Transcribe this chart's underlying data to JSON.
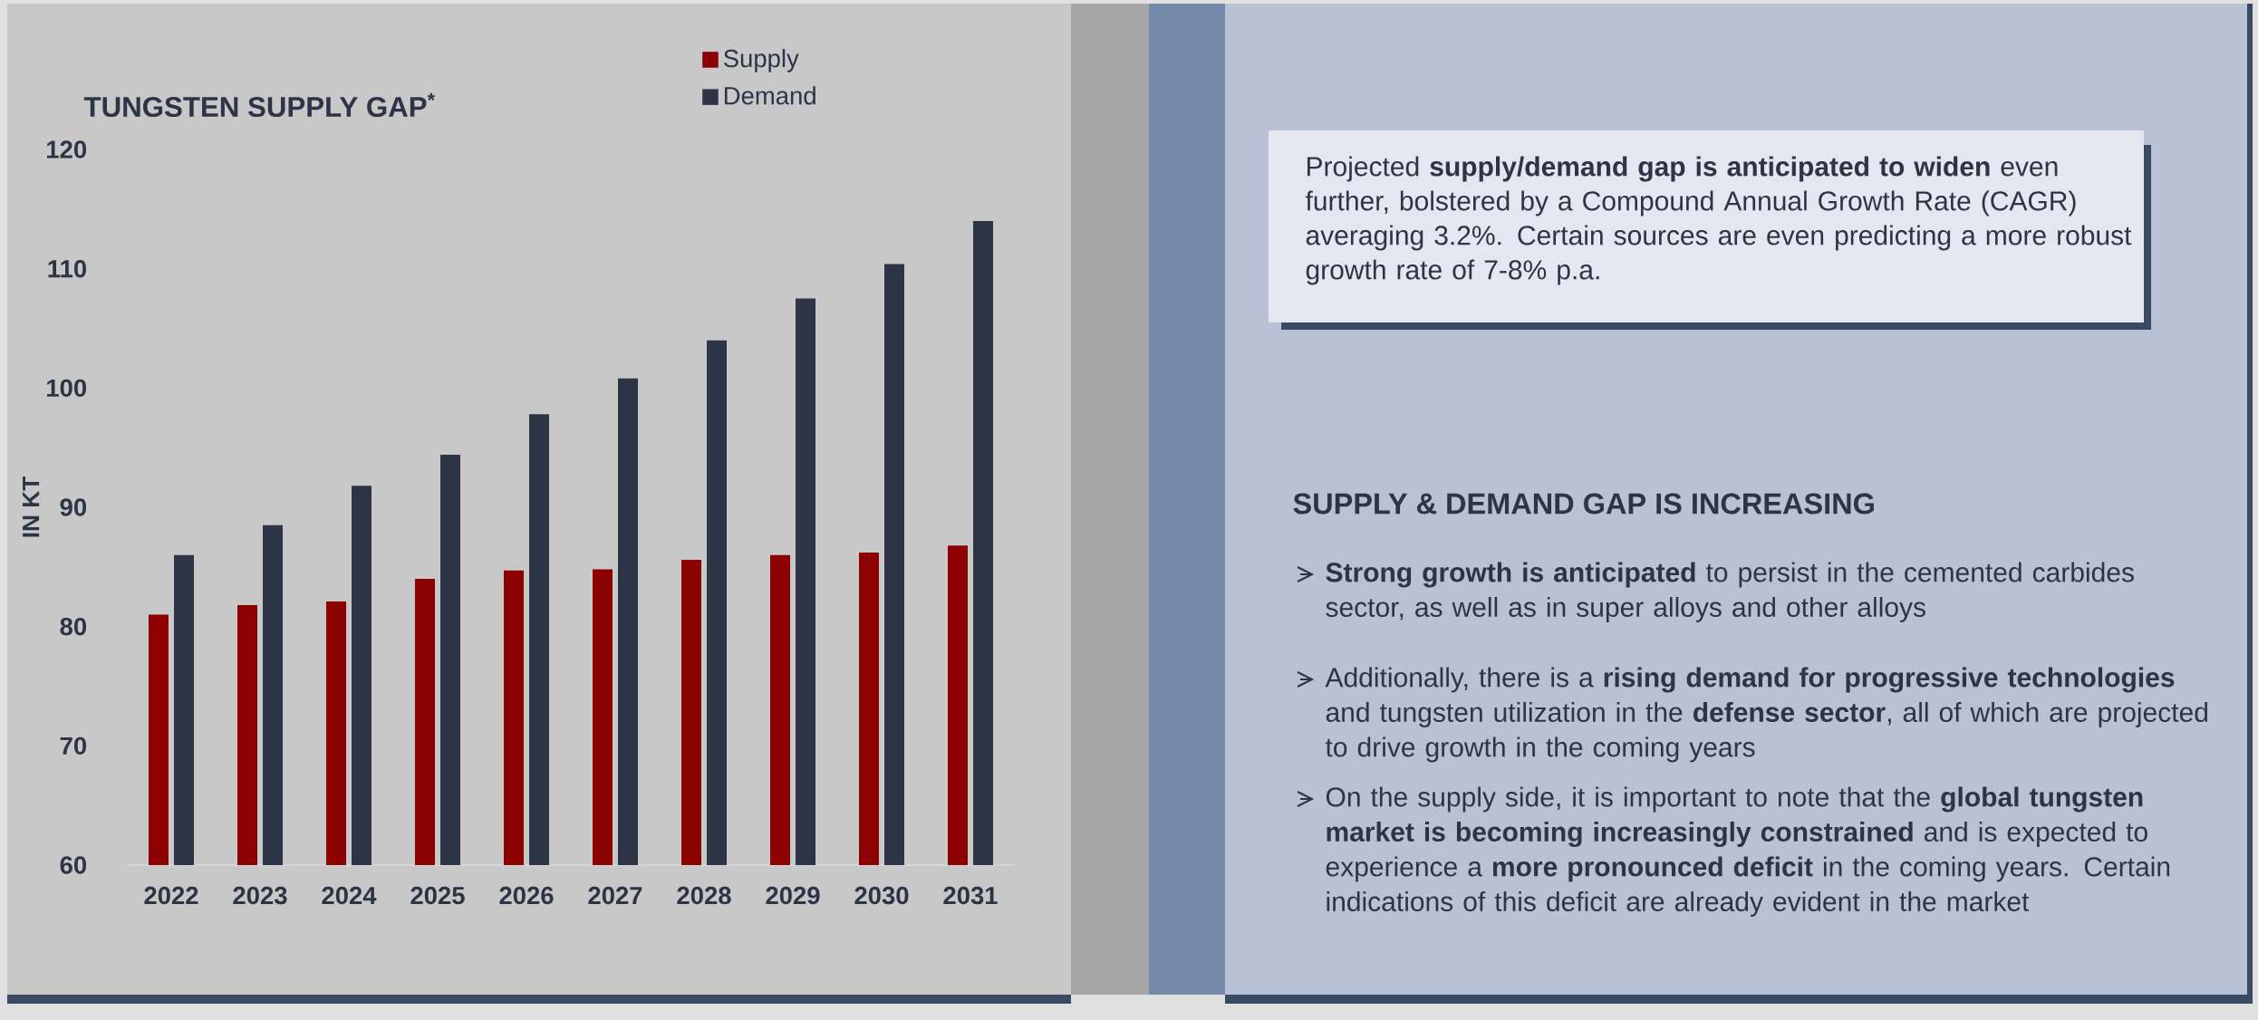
{
  "chart_data": {
    "type": "bar",
    "title": "TUNGSTEN SUPPLY GAP$^{*}$",
    "ylabel": "IN KT",
    "categories": [
      "2022",
      "2023",
      "2024",
      "2025",
      "2026",
      "2027",
      "2028",
      "2029",
      "2030",
      "2031"
    ],
    "series": [
      {
        "name": "Supply",
        "color": "#8b0000",
        "values": [
          81.0,
          81.8,
          82.1,
          84.0,
          84.7,
          84.8,
          85.6,
          86.0,
          86.2,
          86.8
        ]
      },
      {
        "name": "Demand",
        "color": "#2d3446",
        "values": [
          86.0,
          88.5,
          91.8,
          94.4,
          97.8,
          100.8,
          104.0,
          107.5,
          110.4,
          114.0
        ]
      }
    ],
    "ylim": [
      60,
      120
    ],
    "yticks": [
      60,
      70,
      80,
      90,
      100,
      110,
      120
    ],
    "legend": "top",
    "annotations": [
      "Projected **supply/demand gap is anticipated to widen** even further, bolstered by a Compound Annual Growth Rate (CAGR) averaging 3.2%. Certain sources are even predicting a more robust growth rate of 7-8% p.a.",
      "SUPPLY & DEMAND GAP IS INCREASING",
      "**Strong growth is anticipated** to persist in the cemented carbides sector, as well as in super alloys and other alloys",
      "Additionally, there is a **rising demand for progressive technologies** and tungsten utilization in the **defense sector**, all of which are projected to drive growth in the coming years",
      "On the supply side, it is important to note that the **global tungsten market is becoming increasingly constrained** and is expected to experience a **more pronounced deficit** in the coming years. Certain indications of this deficit are already evident in the market"
    ]
  }
}
